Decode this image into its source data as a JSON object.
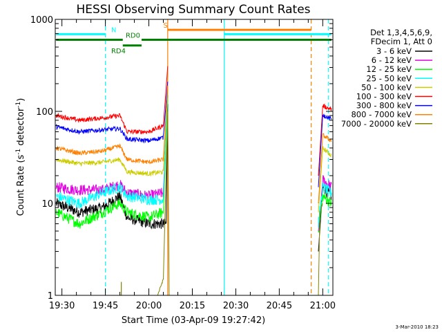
{
  "chart_data": {
    "type": "line",
    "title": "HESSI Observing Summary Count Rates",
    "xlabel": "Start Time (03-Apr-09 19:27:42)",
    "ylabel_parts": [
      "Count Rate (s",
      "-1",
      " detector",
      "-1",
      ")"
    ],
    "y_scale": "log",
    "ylim": [
      1,
      1000
    ],
    "y_tick_values": [
      1,
      10,
      100,
      1000
    ],
    "y_tick_labels": [
      "1",
      "10",
      "100",
      "1000"
    ],
    "xlim_minutes": [
      -2.3,
      93.5
    ],
    "x_tick_values": [
      0,
      15,
      30,
      45,
      60,
      75,
      90
    ],
    "x_tick_labels": [
      "19:30",
      "19:45",
      "20:00",
      "20:15",
      "20:30",
      "20:45",
      "21:00"
    ],
    "legend": {
      "header": [
        "Det 1,3,4,5,6,9,",
        "FDecim 1, Att 0"
      ],
      "position": "right"
    },
    "series": [
      {
        "name": "3 - 6 keV",
        "color": "#000000",
        "segments": [
          {
            "t": [
              -2.0,
              6,
              14,
              20,
              22.5,
              30,
              36,
              36.5
            ],
            "v": [
              10,
              8,
              9,
              12,
              7,
              6,
              6,
              120
            ]
          },
          {
            "t": [
              88.5,
              90,
              93
            ],
            "v": [
              3,
              15,
              12
            ]
          }
        ]
      },
      {
        "name": "6 - 12 keV",
        "color": "#e000e0",
        "segments": [
          {
            "t": [
              -2.0,
              5,
              14,
              20,
              22.5,
              30,
              35,
              36.5
            ],
            "v": [
              15,
              14,
              14,
              16,
              13,
              12,
              13,
              150
            ]
          },
          {
            "t": [
              88.5,
              90,
              93
            ],
            "v": [
              5,
              18,
              15
            ]
          }
        ]
      },
      {
        "name": "12 - 25 keV",
        "color": "#00ff00",
        "segments": [
          {
            "t": [
              -2.0,
              6,
              14,
              20,
              22.5,
              30,
              35,
              36.5
            ],
            "v": [
              8,
              6,
              8,
              10,
              8,
              7,
              8,
              140
            ]
          },
          {
            "t": [
              88.5,
              90,
              93
            ],
            "v": [
              5,
              12,
              10
            ]
          }
        ]
      },
      {
        "name": "25 - 50 keV",
        "color": "#00ffff",
        "segments": [
          {
            "t": [
              -2.0,
              6,
              14,
              20,
              22.5,
              30,
              35,
              36.5
            ],
            "v": [
              12,
              10,
              13,
              15,
              12,
              11,
              11,
              160
            ]
          },
          {
            "t": [
              88.5,
              90,
              93
            ],
            "v": [
              6,
              15,
              13
            ]
          }
        ]
      },
      {
        "name": "50 - 100 keV",
        "color": "#cccc00",
        "segments": [
          {
            "t": [
              -2.0,
              6,
              14,
              20,
              22.5,
              30,
              35,
              36.5
            ],
            "v": [
              30,
              27,
              28,
              30,
              22,
              21,
              22,
              170
            ]
          },
          {
            "t": [
              88.5,
              90,
              93
            ],
            "v": [
              8,
              40,
              33
            ]
          }
        ]
      },
      {
        "name": "100 - 300 keV",
        "color": "#ff0000",
        "segments": [
          {
            "t": [
              -2.0,
              6,
              14,
              20,
              22.5,
              30,
              35,
              36.5
            ],
            "v": [
              90,
              80,
              85,
              90,
              60,
              60,
              70,
              310
            ]
          },
          {
            "t": [
              88.5,
              90,
              93
            ],
            "v": [
              20,
              115,
              105
            ]
          }
        ]
      },
      {
        "name": "300 - 800 keV",
        "color": "#0000ff",
        "segments": [
          {
            "t": [
              -2.0,
              6,
              14,
              20,
              22.5,
              30,
              35,
              36.5
            ],
            "v": [
              68,
              60,
              63,
              65,
              50,
              48,
              52,
              210
            ]
          },
          {
            "t": [
              88.5,
              90,
              93
            ],
            "v": [
              15,
              92,
              82
            ]
          }
        ]
      },
      {
        "name": "800 - 7000 keV",
        "color": "#ff8000",
        "segments": [
          {
            "t": [
              -2.0,
              6,
              14,
              20,
              22.5,
              30,
              35,
              36.5
            ],
            "v": [
              40,
              35,
              37,
              42,
              30,
              28,
              30,
              190
            ]
          },
          {
            "t": [
              88.5,
              90,
              93
            ],
            "v": [
              10,
              55,
              48
            ]
          }
        ]
      },
      {
        "name": "7000 - 20000 keV",
        "color": "#808000",
        "segments": [
          {
            "t": [
              33,
              35,
              36.5,
              37
            ],
            "v": [
              1,
              1.5,
              100,
              1
            ]
          },
          {
            "t": [
              88.5,
              89,
              90
            ],
            "v": [
              1,
              8,
              10
            ]
          }
        ]
      }
    ],
    "spikes": [
      {
        "t": 20.5,
        "v": 1.4,
        "color": "#808000"
      }
    ],
    "flag_vlines": [
      {
        "t": 15,
        "color": "#00ffff",
        "style": "dashed"
      },
      {
        "t": 36.5,
        "color": "#ff8000",
        "style": "solid"
      },
      {
        "t": 56,
        "color": "#00ffff",
        "style": "solid"
      },
      {
        "t": 86,
        "color": "#ff8000",
        "style": "dashed"
      },
      {
        "t": 92,
        "color": "#00ffff",
        "style": "dashed"
      }
    ],
    "flag_bars": [
      {
        "label": "N",
        "color": "#00ffff",
        "level": 690,
        "segments": [
          [
            -2.0,
            15
          ],
          [
            56,
            93
          ]
        ],
        "label_t": 17
      },
      {
        "label": "S",
        "color": "#ff8000",
        "level": 770,
        "segments": [
          [
            36.5,
            86
          ]
        ],
        "label_t": 35
      },
      {
        "label": "RD0",
        "color": "#008000",
        "level": 600,
        "segments": [
          [
            -2.0,
            21
          ],
          [
            27.5,
            93
          ]
        ],
        "label_t": 22
      },
      {
        "label": "RD4",
        "color": "#008000",
        "level": 520,
        "segments": [
          [
            21,
            27.5
          ]
        ],
        "label_t": 17
      }
    ]
  },
  "timestamp": "3-Mar-2010 18:23"
}
